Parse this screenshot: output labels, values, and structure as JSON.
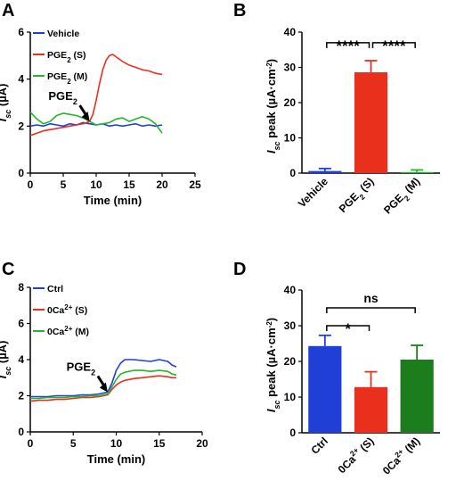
{
  "chart_data": [
    {
      "panel": "A",
      "type": "line",
      "xlabel": "Time (min)",
      "ylabel": "Isc (µA)",
      "ylabel_parts": {
        "sym": "I",
        "sub": "sc",
        "unit": " (µA)"
      },
      "xlim": [
        0,
        25
      ],
      "ylim": [
        0,
        6
      ],
      "xticks": [
        0,
        5,
        10,
        15,
        20,
        25
      ],
      "yticks": [
        0,
        2,
        4,
        6
      ],
      "legend": "top-left",
      "annotation": {
        "text": "PGE",
        "sub": "2",
        "x": 9,
        "y": 2.2
      },
      "series": [
        {
          "name": "Vehicle",
          "legend_main": "Vehicle",
          "legend_sub": "",
          "legend_tail": "",
          "color": "#1f3fd6",
          "x": [
            0,
            1,
            2,
            3,
            4,
            5,
            6,
            7,
            8,
            9,
            10,
            11,
            12,
            13,
            14,
            15,
            16,
            17,
            18,
            19,
            20
          ],
          "y": [
            2.0,
            2.05,
            2.0,
            2.1,
            2.05,
            2.0,
            2.1,
            2.05,
            2.15,
            2.1,
            2.05,
            2.1,
            2.0,
            2.05,
            2.0,
            2.05,
            2.1,
            2.0,
            2.05,
            2.0,
            2.05
          ]
        },
        {
          "name": "PGE2 (S)",
          "legend_main": "PGE",
          "legend_sub": "2",
          "legend_tail": " (S)",
          "color": "#e8301c",
          "x": [
            0,
            1,
            2,
            3,
            4,
            5,
            6,
            7,
            8,
            9,
            9.5,
            10,
            10.5,
            11,
            11.5,
            12,
            12.5,
            13,
            14,
            15,
            16,
            17,
            18,
            19,
            20
          ],
          "y": [
            1.6,
            1.7,
            1.8,
            1.85,
            1.9,
            1.95,
            2.0,
            2.05,
            2.1,
            2.2,
            2.5,
            3.1,
            3.8,
            4.4,
            4.8,
            5.0,
            5.05,
            4.95,
            4.75,
            4.6,
            4.5,
            4.4,
            4.35,
            4.25,
            4.2
          ]
        },
        {
          "name": "PGE2 (M)",
          "legend_main": "PGE",
          "legend_sub": "2",
          "legend_tail": " (M)",
          "color": "#27b52c",
          "x": [
            0,
            1,
            2,
            3,
            4,
            5,
            6,
            7,
            8,
            9,
            10,
            11,
            12,
            13,
            14,
            15,
            16,
            17,
            18,
            19,
            19.5,
            20
          ],
          "y": [
            2.6,
            2.3,
            2.1,
            2.2,
            2.45,
            2.55,
            2.5,
            2.45,
            2.35,
            2.2,
            2.05,
            2.1,
            2.15,
            2.3,
            2.35,
            2.2,
            2.3,
            2.4,
            2.3,
            2.1,
            1.9,
            1.7
          ]
        }
      ]
    },
    {
      "panel": "B",
      "type": "bar",
      "ylabel": "Isc peak (µA·cm⁻²)",
      "ylabel_parts": {
        "sym": "I",
        "sub": "sc",
        "unit": " peak (µA·cm",
        "sup": "-2",
        "close": ")"
      },
      "ylim": [
        0,
        40
      ],
      "yticks": [
        0,
        10,
        20,
        30,
        40
      ],
      "categories": [
        {
          "main": "Vehicle",
          "sub": "",
          "sup": "",
          "tail": ""
        },
        {
          "main": "PGE",
          "sub": "2",
          "sup": "",
          "tail": " (S)"
        },
        {
          "main": "PGE",
          "sub": "2",
          "sup": "",
          "tail": " (M)"
        }
      ],
      "values": [
        0.6,
        28.6,
        0.3
      ],
      "errors": [
        0.7,
        3.3,
        0.6
      ],
      "colors": [
        "#1f3fd6",
        "#e8301c",
        "#27b52c"
      ],
      "significance": [
        {
          "from": 0,
          "to": 1,
          "label": "****",
          "level": 37
        },
        {
          "from": 1,
          "to": 2,
          "label": "****",
          "level": 37
        }
      ]
    },
    {
      "panel": "C",
      "type": "line",
      "xlabel": "Time (min)",
      "ylabel": "Isc (µA)",
      "ylabel_parts": {
        "sym": "I",
        "sub": "sc",
        "unit": " (µA)"
      },
      "xlim": [
        0,
        20
      ],
      "ylim": [
        0,
        8
      ],
      "xticks": [
        0,
        5,
        10,
        15,
        20
      ],
      "yticks": [
        0,
        2,
        4,
        6,
        8
      ],
      "legend": "top-left",
      "annotation": {
        "text": "PGE",
        "sub": "2",
        "x": 9,
        "y": 2.2
      },
      "series": [
        {
          "name": "Ctrl",
          "legend_main": "Ctrl",
          "legend_sub": "",
          "legend_sup": "",
          "legend_tail": "",
          "color": "#1f3fd6",
          "x": [
            0,
            1,
            2,
            3,
            4,
            5,
            6,
            7,
            8,
            9,
            9.5,
            10,
            10.5,
            11,
            12,
            13,
            14,
            15,
            16,
            16.5,
            17
          ],
          "y": [
            1.95,
            1.95,
            1.95,
            2.0,
            2.0,
            2.0,
            2.05,
            2.05,
            2.1,
            2.2,
            2.7,
            3.4,
            3.8,
            4.0,
            4.0,
            3.95,
            3.9,
            4.0,
            3.9,
            3.7,
            3.6
          ]
        },
        {
          "name": "0Ca2+ (S)",
          "legend_main": "0Ca",
          "legend_sub": "",
          "legend_sup": "2+",
          "legend_tail": " (S)",
          "color": "#e8301c",
          "x": [
            0,
            1,
            2,
            3,
            4,
            5,
            6,
            7,
            8,
            9,
            9.5,
            10,
            10.5,
            11,
            12,
            13,
            14,
            15,
            16,
            16.5,
            17
          ],
          "y": [
            1.7,
            1.75,
            1.75,
            1.8,
            1.8,
            1.85,
            1.9,
            1.9,
            1.95,
            2.05,
            2.35,
            2.6,
            2.75,
            2.85,
            2.95,
            3.0,
            3.05,
            3.1,
            3.05,
            3.0,
            3.0
          ]
        },
        {
          "name": "0Ca2+ (M)",
          "legend_main": "0Ca",
          "legend_sub": "",
          "legend_sup": "2+",
          "legend_tail": " (M)",
          "color": "#27b52c",
          "x": [
            0,
            1,
            2,
            3,
            4,
            5,
            6,
            7,
            8,
            9,
            9.5,
            10,
            10.5,
            11,
            12,
            13,
            14,
            15,
            16,
            16.5,
            17
          ],
          "y": [
            1.85,
            1.85,
            1.9,
            1.9,
            1.9,
            1.95,
            1.95,
            2.0,
            2.0,
            2.1,
            2.5,
            2.9,
            3.2,
            3.3,
            3.4,
            3.4,
            3.35,
            3.4,
            3.35,
            3.2,
            3.15
          ]
        }
      ]
    },
    {
      "panel": "D",
      "type": "bar",
      "ylabel": "Isc peak (µA·cm⁻²)",
      "ylabel_parts": {
        "sym": "I",
        "sub": "sc",
        "unit": " peak (µA·cm",
        "sup": "-2",
        "close": ")"
      },
      "ylim": [
        0,
        40
      ],
      "yticks": [
        0,
        10,
        20,
        30,
        40
      ],
      "categories": [
        {
          "main": "Ctrl",
          "sub": "",
          "sup": "",
          "tail": ""
        },
        {
          "main": "0Ca",
          "sub": "",
          "sup": "2+",
          "tail": " (S)"
        },
        {
          "main": "0Ca",
          "sub": "",
          "sup": "2+",
          "tail": " (M)"
        }
      ],
      "values": [
        24.3,
        12.8,
        20.5
      ],
      "errors": [
        3.0,
        4.3,
        4.0
      ],
      "colors": [
        "#1f3fd6",
        "#e8301c",
        "#1b7d1b"
      ],
      "significance": [
        {
          "from": 0,
          "to": 1,
          "label": "*",
          "level": 30
        },
        {
          "from": 0,
          "to": 2,
          "label": "ns",
          "level": 35
        }
      ]
    }
  ]
}
